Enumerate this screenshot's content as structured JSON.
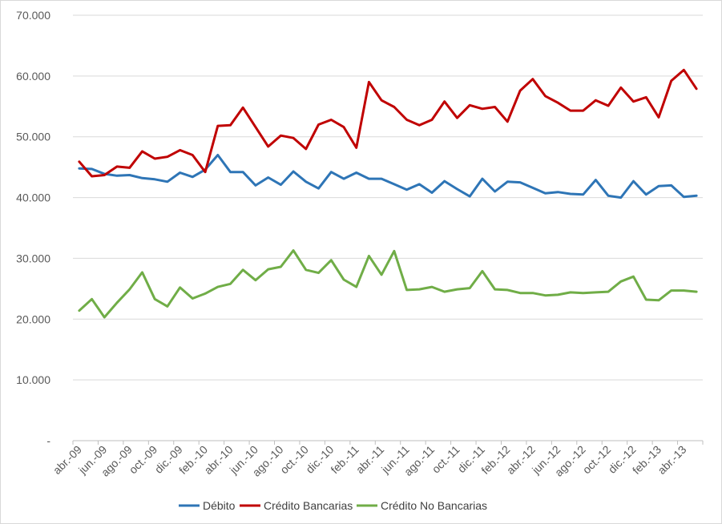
{
  "chart_data": {
    "type": "line",
    "title": "",
    "xlabel": "",
    "ylabel": "",
    "ylim": [
      0,
      70000
    ],
    "y_ticks": [
      0,
      10000,
      20000,
      30000,
      40000,
      50000,
      60000,
      70000
    ],
    "y_tick_labels": [
      "-",
      "10.000",
      "20.000",
      "30.000",
      "40.000",
      "50.000",
      "60.000",
      "70.000"
    ],
    "grid": true,
    "legend_position": "bottom",
    "categories": [
      "abr.-09",
      "may.-09",
      "jun.-09",
      "jul.-09",
      "ago.-09",
      "sep.-09",
      "oct.-09",
      "nov.-09",
      "dic.-09",
      "ene.-10",
      "feb.-10",
      "mar.-10",
      "abr.-10",
      "may.-10",
      "jun.-10",
      "jul.-10",
      "ago.-10",
      "sep.-10",
      "oct.-10",
      "nov.-10",
      "dic.-10",
      "ene.-11",
      "feb.-11",
      "mar.-11",
      "abr.-11",
      "may.-11",
      "jun.-11",
      "jul.-11",
      "ago.-11",
      "sep.-11",
      "oct.-11",
      "nov.-11",
      "dic.-11",
      "ene.-12",
      "feb.-12",
      "mar.-12",
      "abr.-12",
      "may.-12",
      "jun.-12",
      "jul.-12",
      "ago.-12",
      "sep.-12",
      "oct.-12",
      "nov.-12",
      "dic.-12",
      "ene.-13",
      "feb.-13",
      "mar.-13",
      "abr.-13",
      "may.-13"
    ],
    "x_tick_labels": [
      "abr.-09",
      "jun.-09",
      "ago.-09",
      "oct.-09",
      "dic.-09",
      "feb.-10",
      "abr.-10",
      "jun.-10",
      "ago.-10",
      "oct.-10",
      "dic.-10",
      "feb.-11",
      "abr.-11",
      "jun.-11",
      "ago.-11",
      "oct.-11",
      "dic.-11",
      "feb.-12",
      "abr.-12",
      "jun.-12",
      "ago.-12",
      "oct.-12",
      "dic.-12",
      "feb.-13",
      "abr.-13"
    ],
    "series": [
      {
        "name": "Débito",
        "color": "#2e75b6",
        "values": [
          44800,
          44700,
          43900,
          43600,
          43700,
          43200,
          43000,
          42600,
          44100,
          43400,
          44600,
          47000,
          44200,
          44200,
          42000,
          43300,
          42100,
          44300,
          42600,
          41500,
          44200,
          43100,
          44100,
          43100,
          43100,
          42200,
          41300,
          42200,
          40800,
          42700,
          41400,
          40200,
          43100,
          41000,
          42600,
          42500,
          41600,
          40700,
          40900,
          40600,
          40500,
          42900,
          40300,
          40000,
          42700,
          40500,
          41900,
          42000,
          40100,
          40300
        ]
      },
      {
        "name": "Crédito Bancarias",
        "color": "#c00000",
        "values": [
          45900,
          43500,
          43700,
          45100,
          44900,
          47600,
          46400,
          46700,
          47800,
          47000,
          44200,
          51800,
          51900,
          54800,
          51600,
          48400,
          50200,
          49800,
          48000,
          52000,
          52800,
          51600,
          48200,
          59000,
          56000,
          54900,
          52800,
          51900,
          52800,
          55800,
          53100,
          55200,
          54600,
          54900,
          52500,
          57600,
          59500,
          56700,
          55600,
          54300,
          54300,
          56000,
          55100,
          58100,
          55800,
          56500,
          53200,
          59200,
          61000,
          57900
        ]
      },
      {
        "name": "Crédito No Bancarias",
        "color": "#70ad47",
        "values": [
          21400,
          23300,
          20300,
          22700,
          24900,
          27700,
          23300,
          22100,
          25200,
          23400,
          24200,
          25300,
          25800,
          28100,
          26400,
          28200,
          28600,
          31300,
          28100,
          27600,
          29700,
          26500,
          25300,
          30400,
          27300,
          31200,
          24800,
          24900,
          25300,
          24500,
          24900,
          25100,
          27900,
          24900,
          24800,
          24300,
          24300,
          23900,
          24000,
          24400,
          24300,
          24400,
          24500,
          26200,
          27000,
          23200,
          23100,
          24700,
          24700,
          24500
        ]
      }
    ]
  }
}
